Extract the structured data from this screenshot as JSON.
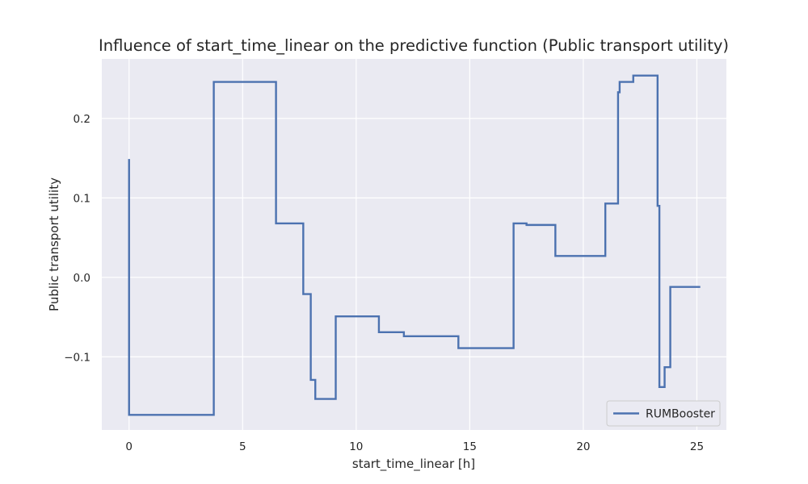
{
  "chart_data": {
    "type": "line",
    "title": "Influence of start_time_linear on the predictive function (Public transport utility)",
    "xlabel": "start_time_linear [h]",
    "ylabel": "Public transport utility",
    "xlim": [
      -1.2,
      26.3
    ],
    "ylim": [
      -0.192,
      0.275
    ],
    "xticks": [
      0,
      5,
      10,
      15,
      20,
      25
    ],
    "yticks": [
      -0.1,
      0.0,
      0.1,
      0.2
    ],
    "xtick_labels": [
      "0",
      "5",
      "10",
      "15",
      "20",
      "25"
    ],
    "ytick_labels": [
      "−0.1",
      "0.0",
      "0.1",
      "0.2"
    ],
    "grid": true,
    "legend_position": "lower-right",
    "step": true,
    "series": [
      {
        "name": "RUMBooster",
        "color": "#4c72b0",
        "x": [
          0.0,
          0.0,
          3.73,
          6.47,
          7.67,
          8.0,
          8.2,
          9.1,
          11.0,
          12.1,
          14.5,
          16.93,
          17.5,
          18.77,
          20.97,
          21.53,
          21.6,
          22.2,
          23.27,
          23.35,
          23.58,
          23.83,
          25.15
        ],
        "y": [
          0.149,
          -0.173,
          0.246,
          0.068,
          -0.021,
          -0.129,
          -0.153,
          -0.049,
          -0.069,
          -0.074,
          -0.089,
          0.068,
          0.066,
          0.027,
          0.093,
          0.233,
          0.246,
          0.254,
          0.09,
          -0.138,
          -0.113,
          -0.012,
          -0.012
        ]
      }
    ]
  },
  "colors": {
    "plot_background": "#eaeaf2",
    "grid": "#ffffff",
    "line": "#4c72b0"
  },
  "legend": {
    "label": "RUMBooster"
  }
}
